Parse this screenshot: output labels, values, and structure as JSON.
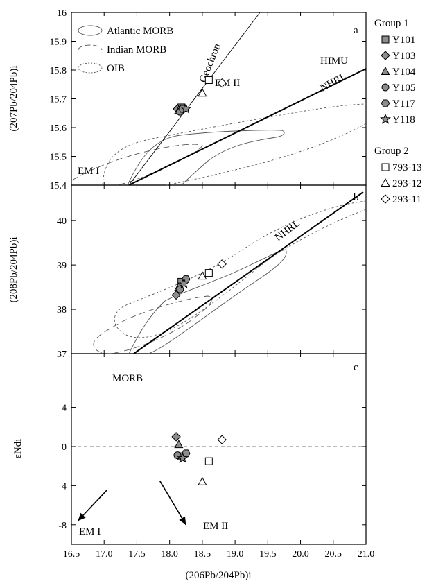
{
  "chart_data": [
    {
      "panel": "a",
      "type": "scatter",
      "ylabel": "(207Pb/204Pb)i",
      "xlim": [
        16.5,
        21.0
      ],
      "ylim": [
        15.4,
        16.0
      ],
      "yticks": [
        "15.4",
        "15.5",
        "15.6",
        "15.7",
        "15.8",
        "15.9",
        "16"
      ],
      "legend": [
        {
          "label": "Atlantic MORB",
          "style": "solid"
        },
        {
          "label": "Indian MORB",
          "style": "long-dash"
        },
        {
          "label": "OIB",
          "style": "short-dash"
        }
      ],
      "annotations": [
        "Geochron",
        "EM II",
        "HIMU",
        "NHRL",
        "EM I"
      ],
      "reference_lines": {
        "Geochron": [
          [
            17.6,
            15.4
          ],
          [
            19.6,
            16.0
          ]
        ],
        "NHRL": [
          [
            17.6,
            15.4
          ],
          [
            21.0,
            15.77
          ]
        ]
      },
      "series": [
        {
          "name": "Y101",
          "group": "Group 1",
          "marker": "square-filled",
          "x": [
            18.18
          ],
          "y": [
            15.67
          ]
        },
        {
          "name": "Y103",
          "group": "Group 1",
          "marker": "diamond-filled",
          "x": [
            18.12
          ],
          "y": [
            15.665
          ]
        },
        {
          "name": "Y104",
          "group": "Group 1",
          "marker": "triangle-filled",
          "x": [
            18.14
          ],
          "y": [
            15.66
          ]
        },
        {
          "name": "Y105",
          "group": "Group 1",
          "marker": "circle-filled",
          "x": [
            18.16
          ],
          "y": [
            15.655
          ]
        },
        {
          "name": "Y117",
          "group": "Group 1",
          "marker": "hexagon-filled",
          "x": [
            18.2
          ],
          "y": [
            15.665
          ]
        },
        {
          "name": "Y118",
          "group": "Group 1",
          "marker": "star-filled",
          "x": [
            18.25
          ],
          "y": [
            15.665
          ]
        },
        {
          "name": "793-13",
          "group": "Group 2",
          "marker": "square-open",
          "x": [
            18.6
          ],
          "y": [
            15.765
          ]
        },
        {
          "name": "293-12",
          "group": "Group 2",
          "marker": "triangle-open",
          "x": [
            18.5
          ],
          "y": [
            15.72
          ]
        },
        {
          "name": "293-11",
          "group": "Group 2",
          "marker": "diamond-open",
          "x": [
            18.8
          ],
          "y": [
            15.755
          ]
        }
      ]
    },
    {
      "panel": "b",
      "type": "scatter",
      "ylabel": "(208Pb/204Pb)i",
      "xlim": [
        16.5,
        21.0
      ],
      "ylim": [
        37.0,
        40.8
      ],
      "yticks": [
        "37",
        "38",
        "39",
        "40"
      ],
      "annotations": [
        "NHRL"
      ],
      "reference_lines": {
        "NHRL": [
          [
            17.65,
            37.0
          ],
          [
            20.95,
            40.65
          ]
        ]
      },
      "series": [
        {
          "name": "Y101",
          "x": [
            18.18
          ],
          "y": [
            38.62
          ]
        },
        {
          "name": "Y103",
          "x": [
            18.1
          ],
          "y": [
            38.32
          ]
        },
        {
          "name": "Y104",
          "x": [
            18.14
          ],
          "y": [
            38.5
          ]
        },
        {
          "name": "Y105",
          "x": [
            18.16
          ],
          "y": [
            38.45
          ]
        },
        {
          "name": "Y117",
          "x": [
            18.25
          ],
          "y": [
            38.68
          ]
        },
        {
          "name": "Y118",
          "x": [
            18.22
          ],
          "y": [
            38.58
          ]
        },
        {
          "name": "793-13",
          "x": [
            18.6
          ],
          "y": [
            38.82
          ]
        },
        {
          "name": "293-12",
          "x": [
            18.5
          ],
          "y": [
            38.75
          ]
        },
        {
          "name": "293-11",
          "x": [
            18.8
          ],
          "y": [
            39.02
          ]
        }
      ]
    },
    {
      "panel": "c",
      "type": "scatter",
      "ylabel": "εNdi",
      "xlabel": "(206Pb/204Pb)i",
      "xlim": [
        16.5,
        21.0
      ],
      "ylim": [
        -10,
        9.5
      ],
      "yticks": [
        "-8",
        "-4",
        "0",
        "4"
      ],
      "xticks": [
        "16.5",
        "17.0",
        "17.5",
        "18.0",
        "18.5",
        "19.0",
        "19.5",
        "20.0",
        "20.5",
        "21.0"
      ],
      "annotations": [
        "MORB",
        "EM I",
        "EM II"
      ],
      "reference_lines": {
        "zero": 0
      },
      "arrows": [
        {
          "label": "EM I",
          "from": [
            17.05,
            -4.4
          ],
          "to": [
            16.6,
            -7.6
          ]
        },
        {
          "label": "EM II",
          "from": [
            17.85,
            -3.5
          ],
          "to": [
            18.25,
            -8.0
          ]
        }
      ],
      "series": [
        {
          "name": "Y101",
          "x": [
            18.18
          ],
          "y": [
            -1.0
          ]
        },
        {
          "name": "Y103",
          "x": [
            18.1
          ],
          "y": [
            1.0
          ]
        },
        {
          "name": "Y104",
          "x": [
            18.14
          ],
          "y": [
            0.2
          ]
        },
        {
          "name": "Y105",
          "x": [
            18.12
          ],
          "y": [
            -0.9
          ]
        },
        {
          "name": "Y117",
          "x": [
            18.25
          ],
          "y": [
            -0.7
          ]
        },
        {
          "name": "Y118",
          "x": [
            18.2
          ],
          "y": [
            -1.2
          ]
        },
        {
          "name": "793-13",
          "x": [
            18.6
          ],
          "y": [
            -1.5
          ]
        },
        {
          "name": "293-12",
          "x": [
            18.5
          ],
          "y": [
            -3.6
          ]
        },
        {
          "name": "293-11",
          "x": [
            18.8
          ],
          "y": [
            0.7
          ]
        }
      ]
    }
  ],
  "legend": {
    "groups": [
      {
        "title": "Group 1",
        "items": [
          {
            "label": "Y101",
            "marker": "square-filled"
          },
          {
            "label": "Y103",
            "marker": "diamond-filled"
          },
          {
            "label": "Y104",
            "marker": "triangle-filled"
          },
          {
            "label": "Y105",
            "marker": "circle-filled"
          },
          {
            "label": "Y117",
            "marker": "hexagon-filled"
          },
          {
            "label": "Y118",
            "marker": "star-filled"
          }
        ]
      },
      {
        "title": "Group 2",
        "items": [
          {
            "label": "793-13",
            "marker": "square-open"
          },
          {
            "label": "293-12",
            "marker": "triangle-open"
          },
          {
            "label": "293-11",
            "marker": "diamond-open"
          }
        ]
      }
    ]
  },
  "colors": {
    "filled_marker": "#8c8c8c",
    "outline": "#000000",
    "open_marker": "#ffffff"
  }
}
